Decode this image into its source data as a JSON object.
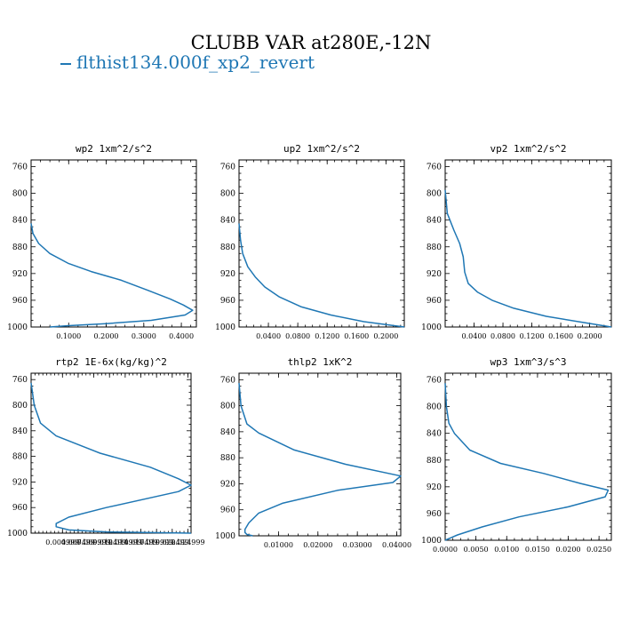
{
  "figure": {
    "title": "CLUBB VAR at280E,-12N",
    "legend": [
      {
        "label": "flthist134.000f_xp2_revert",
        "color": "#1f77b4"
      }
    ]
  },
  "chart_data": [
    {
      "type": "line",
      "title": "wp2  1xm^2/s^2",
      "xlim": [
        0,
        0.44
      ],
      "ylim": [
        1000,
        750
      ],
      "xticks": [
        0.1,
        0.2,
        0.3,
        0.4
      ],
      "xtick_labels": [
        "0.1000",
        "0.2000",
        "0.3000",
        "0.4000"
      ],
      "yticks": [
        760,
        800,
        840,
        880,
        920,
        960,
        1000
      ],
      "series": [
        {
          "x": [
            0.0,
            0.005,
            0.02,
            0.05,
            0.1,
            0.16,
            0.24,
            0.31,
            0.37,
            0.405,
            0.43,
            0.41,
            0.32,
            0.2,
            0.1,
            0.05
          ],
          "y": [
            845,
            860,
            875,
            890,
            905,
            917,
            930,
            945,
            958,
            967,
            975,
            982,
            990,
            995,
            998,
            1000
          ]
        }
      ]
    },
    {
      "type": "line",
      "title": "up2  1xm^2/s^2",
      "xlim": [
        0,
        0.225
      ],
      "ylim": [
        1000,
        750
      ],
      "xticks": [
        0.04,
        0.08,
        0.12,
        0.16,
        0.2
      ],
      "xtick_labels": [
        "0.0400",
        "0.0800",
        "0.1200",
        "0.1600",
        "0.2000"
      ],
      "yticks": [
        760,
        800,
        840,
        880,
        920,
        960,
        1000
      ],
      "series": [
        {
          "x": [
            0.0,
            0.002,
            0.005,
            0.012,
            0.022,
            0.035,
            0.055,
            0.085,
            0.125,
            0.17,
            0.225
          ],
          "y": [
            845,
            870,
            890,
            910,
            925,
            940,
            955,
            970,
            982,
            992,
            1000
          ]
        }
      ]
    },
    {
      "type": "line",
      "title": "vp2  1xm^2/s^2",
      "xlim": [
        0,
        0.23
      ],
      "ylim": [
        1000,
        750
      ],
      "xticks": [
        0.04,
        0.08,
        0.12,
        0.16,
        0.2
      ],
      "xtick_labels": [
        "0.0400",
        "0.0800",
        "0.1200",
        "0.1600",
        "0.2000"
      ],
      "yticks": [
        760,
        800,
        840,
        880,
        920,
        960,
        1000
      ],
      "series": [
        {
          "x": [
            0.0,
            0.003,
            0.012,
            0.02,
            0.025,
            0.027,
            0.032,
            0.045,
            0.065,
            0.095,
            0.14,
            0.19,
            0.23
          ],
          "y": [
            795,
            830,
            855,
            875,
            895,
            918,
            935,
            948,
            960,
            972,
            984,
            993,
            1000
          ]
        }
      ]
    },
    {
      "type": "line",
      "title": "rtp2  1E-6x(kg/kg)^2",
      "xlim": [
        0,
        0.0255
      ],
      "ylim": [
        1000,
        750
      ],
      "xticks": [
        0.005,
        0.0075,
        0.01,
        0.0125,
        0.015,
        0.0175,
        0.02,
        0.0225,
        0.025
      ],
      "xtick_labels": [
        "0.004999",
        "0.007499",
        "0.009999",
        "0.012499",
        "0.014999",
        "0.017499",
        "0.019999",
        "0.022499",
        "0.024999"
      ],
      "yticks": [
        760,
        800,
        840,
        880,
        920,
        960,
        1000
      ],
      "series": [
        {
          "x": [
            0.0,
            0.0005,
            0.0015,
            0.004,
            0.011,
            0.019,
            0.0235,
            0.0255,
            0.0235,
            0.012,
            0.006,
            0.004,
            0.004,
            0.006,
            0.012,
            0.0255
          ],
          "y": [
            765,
            800,
            828,
            848,
            875,
            897,
            915,
            925,
            935,
            960,
            975,
            985,
            990,
            995,
            998,
            1000
          ]
        }
      ]
    },
    {
      "type": "line",
      "title": "thlp2  1xK^2",
      "xlim": [
        0,
        0.041
      ],
      "ylim": [
        1000,
        750
      ],
      "xticks": [
        0.01,
        0.02,
        0.03,
        0.04
      ],
      "xtick_labels": [
        "0.01000",
        "0.02000",
        "0.03000",
        "0.04000"
      ],
      "yticks": [
        760,
        800,
        840,
        880,
        920,
        960,
        1000
      ],
      "series": [
        {
          "x": [
            0.0,
            0.0005,
            0.002,
            0.005,
            0.014,
            0.027,
            0.041,
            0.039,
            0.025,
            0.011,
            0.005,
            0.0025,
            0.0015,
            0.0015,
            0.002,
            0.0035
          ],
          "y": [
            765,
            800,
            828,
            842,
            868,
            890,
            908,
            918,
            930,
            950,
            965,
            980,
            990,
            995,
            998,
            1000
          ]
        }
      ]
    },
    {
      "type": "line",
      "title": "wp3  1xm^3/s^3",
      "xlim": [
        0,
        0.027
      ],
      "ylim": [
        1000,
        750
      ],
      "xticks": [
        0.0,
        0.005,
        0.01,
        0.015,
        0.02,
        0.025
      ],
      "xtick_labels": [
        "0.0000",
        "0.0050",
        "0.0100",
        "0.0150",
        "0.0200",
        "0.0250"
      ],
      "yticks": [
        760,
        800,
        840,
        880,
        920,
        960,
        1000
      ],
      "series": [
        {
          "x": [
            0.0,
            0.0002,
            0.0006,
            0.0015,
            0.004,
            0.009,
            0.016,
            0.022,
            0.0265,
            0.026,
            0.02,
            0.012,
            0.006,
            0.002,
            0.0005,
            0.0
          ],
          "y": [
            765,
            800,
            825,
            840,
            865,
            885,
            900,
            915,
            925,
            935,
            950,
            965,
            980,
            992,
            998,
            1000
          ]
        }
      ]
    }
  ]
}
